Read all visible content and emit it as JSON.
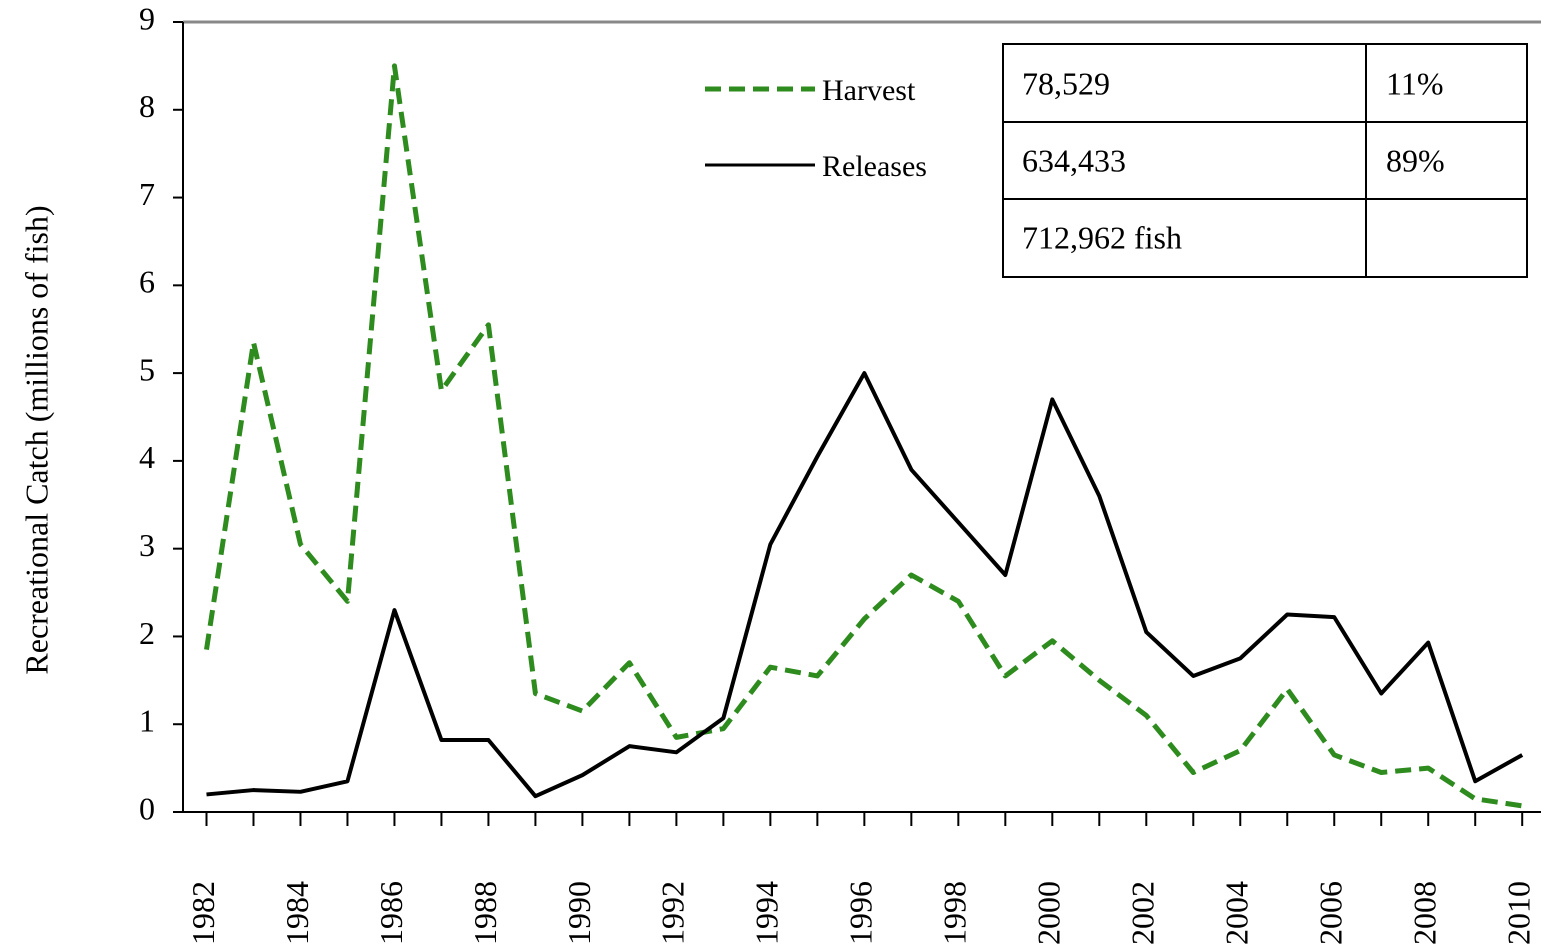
{
  "chart_data": {
    "type": "line",
    "ylabel": "Recreational Catch (millions of fish)",
    "x": [
      1982,
      1983,
      1984,
      1985,
      1986,
      1987,
      1988,
      1989,
      1990,
      1991,
      1992,
      1993,
      1994,
      1995,
      1996,
      1997,
      1998,
      1999,
      2000,
      2001,
      2002,
      2003,
      2004,
      2005,
      2006,
      2007,
      2008,
      2009,
      2010
    ],
    "xlim": [
      1981.5,
      2010.4
    ],
    "xticks": [
      1982,
      1984,
      1986,
      1988,
      1990,
      1992,
      1994,
      1996,
      1998,
      2000,
      2002,
      2004,
      2006,
      2008,
      2010
    ],
    "ylim": [
      0,
      9
    ],
    "yticks": [
      0,
      1,
      2,
      3,
      4,
      5,
      6,
      7,
      8,
      9
    ],
    "legend": "top",
    "series": [
      {
        "name": "Harvest",
        "color": "#2e8b1e",
        "dashed": true,
        "values": [
          1.85,
          5.35,
          3.05,
          2.4,
          8.5,
          4.8,
          5.55,
          1.35,
          1.15,
          1.7,
          0.85,
          0.95,
          1.65,
          1.55,
          2.2,
          2.7,
          2.4,
          1.55,
          1.95,
          1.5,
          1.1,
          0.45,
          0.7,
          1.4,
          0.65,
          0.45,
          0.5,
          0.15,
          0.07
        ]
      },
      {
        "name": "Releases",
        "color": "#000000",
        "dashed": false,
        "values": [
          0.2,
          0.25,
          0.23,
          0.35,
          2.3,
          0.82,
          0.82,
          0.18,
          0.42,
          0.75,
          0.68,
          1.07,
          3.05,
          4.05,
          5.0,
          3.9,
          3.3,
          2.7,
          4.7,
          3.6,
          2.05,
          1.55,
          1.75,
          2.25,
          2.22,
          1.35,
          1.93,
          0.35,
          0.65
        ]
      }
    ]
  },
  "table": {
    "rows": [
      [
        "78,529",
        "11%"
      ],
      [
        "634,433",
        "89%"
      ],
      [
        "712,962 fish"
      ]
    ]
  }
}
